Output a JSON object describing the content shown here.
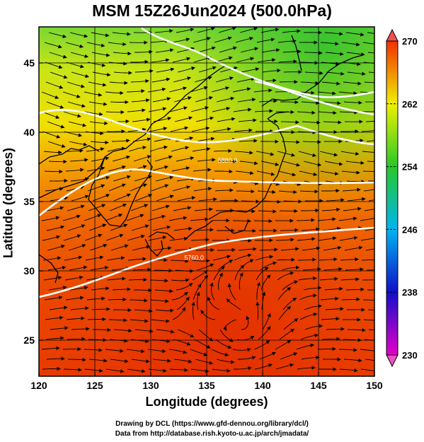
{
  "title": "MSM 15Z26Jun2024 (500.0hPa)",
  "xlabel": "Longitude (degrees)",
  "ylabel": "Latitude  (degrees)",
  "credits": {
    "line1": "Drawing by DCL (https://www.gfd-dennou.org/library/dcl/)",
    "line2": "Data from http://database.rish.kyoto-u.ac.jp/arch/jmadata/"
  },
  "chart_data": {
    "type": "heatmap",
    "x_range": [
      120,
      150
    ],
    "y_range": [
      22.4,
      47.6
    ],
    "x_ticks": [
      120,
      125,
      130,
      135,
      140,
      145,
      150
    ],
    "y_ticks": [
      25,
      30,
      35,
      40,
      45
    ],
    "colorbar": {
      "range": [
        230,
        270
      ],
      "ticks": [
        230,
        238,
        246,
        254,
        262,
        270
      ],
      "colors": [
        "#e600c8",
        "#1010c8",
        "#00b4f0",
        "#28c828",
        "#f0f000",
        "#f03000"
      ]
    },
    "contour_labels": [
      {
        "text": "5880.0",
        "lon": 136.0,
        "lat": 37.8
      },
      {
        "text": "5760.0",
        "lon": 133.0,
        "lat": 30.8
      }
    ],
    "grid": true
  }
}
